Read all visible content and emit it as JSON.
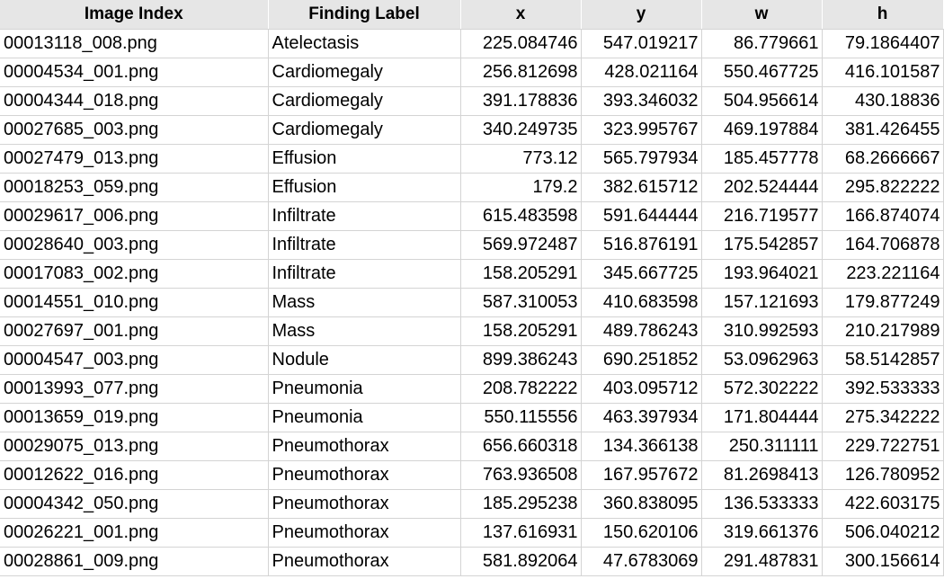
{
  "columns": [
    "Image Index",
    "Finding Label",
    "x",
    "y",
    "w",
    "h"
  ],
  "rows": [
    [
      "00013118_008.png",
      "Atelectasis",
      "225.084746",
      "547.019217",
      "86.779661",
      "79.1864407"
    ],
    [
      "00004534_001.png",
      "Cardiomegaly",
      "256.812698",
      "428.021164",
      "550.467725",
      "416.101587"
    ],
    [
      "00004344_018.png",
      "Cardiomegaly",
      "391.178836",
      "393.346032",
      "504.956614",
      "430.18836"
    ],
    [
      "00027685_003.png",
      "Cardiomegaly",
      "340.249735",
      "323.995767",
      "469.197884",
      "381.426455"
    ],
    [
      "00027479_013.png",
      "Effusion",
      "773.12",
      "565.797934",
      "185.457778",
      "68.2666667"
    ],
    [
      "00018253_059.png",
      "Effusion",
      "179.2",
      "382.615712",
      "202.524444",
      "295.822222"
    ],
    [
      "00029617_006.png",
      "Infiltrate",
      "615.483598",
      "591.644444",
      "216.719577",
      "166.874074"
    ],
    [
      "00028640_003.png",
      "Infiltrate",
      "569.972487",
      "516.876191",
      "175.542857",
      "164.706878"
    ],
    [
      "00017083_002.png",
      "Infiltrate",
      "158.205291",
      "345.667725",
      "193.964021",
      "223.221164"
    ],
    [
      "00014551_010.png",
      "Mass",
      "587.310053",
      "410.683598",
      "157.121693",
      "179.877249"
    ],
    [
      "00027697_001.png",
      "Mass",
      "158.205291",
      "489.786243",
      "310.992593",
      "210.217989"
    ],
    [
      "00004547_003.png",
      "Nodule",
      "899.386243",
      "690.251852",
      "53.0962963",
      "58.5142857"
    ],
    [
      "00013993_077.png",
      "Pneumonia",
      "208.782222",
      "403.095712",
      "572.302222",
      "392.533333"
    ],
    [
      "00013659_019.png",
      "Pneumonia",
      "550.115556",
      "463.397934",
      "171.804444",
      "275.342222"
    ],
    [
      "00029075_013.png",
      "Pneumothorax",
      "656.660318",
      "134.366138",
      "250.311111",
      "229.722751"
    ],
    [
      "00012622_016.png",
      "Pneumothorax",
      "763.936508",
      "167.957672",
      "81.2698413",
      "126.780952"
    ],
    [
      "00004342_050.png",
      "Pneumothorax",
      "185.295238",
      "360.838095",
      "136.533333",
      "422.603175"
    ],
    [
      "00026221_001.png",
      "Pneumothorax",
      "137.616931",
      "150.620106",
      "319.661376",
      "506.040212"
    ],
    [
      "00028861_009.png",
      "Pneumothorax",
      "581.892064",
      "47.6783069",
      "291.487831",
      "300.156614"
    ]
  ]
}
